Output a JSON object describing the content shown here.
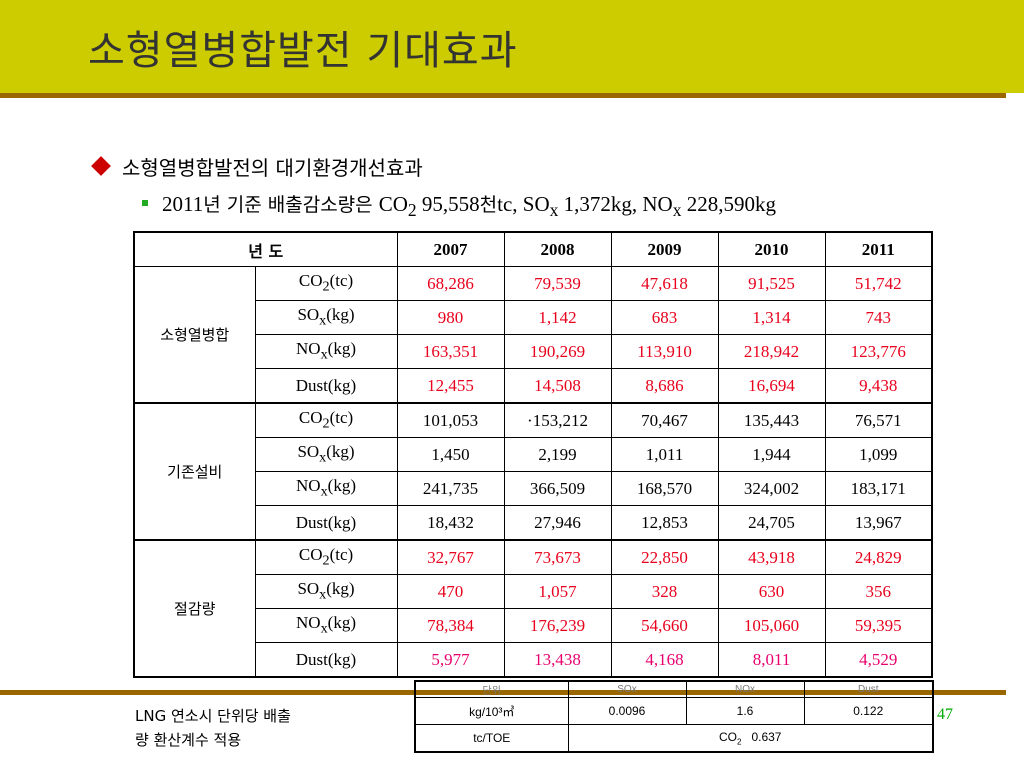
{
  "title": "소형열병합발전 기대효과",
  "bullet1": "소형열병합발전의 대기환경개선효과",
  "bullet2": {
    "prefix": "2011",
    "kr1": "년 기준 배출감소량은 ",
    "co2": "CO",
    "co2_sub": "2",
    "co2_val": " 95,558",
    "kr2": "천",
    "rest1": "tc, SO",
    "sox_sub": "x",
    "rest2": " 1,372kg, NO",
    "nox_sub": "x",
    "rest3": " 228,590kg"
  },
  "table": {
    "header": {
      "year_label": "년 도",
      "years": [
        "2007",
        "2008",
        "2009",
        "2010",
        "2011"
      ]
    },
    "groups": [
      {
        "name": "소형열병합",
        "rows": [
          {
            "label_main": "CO",
            "label_sub": "2",
            "label_unit": "(tc)",
            "values": [
              "68,286",
              "79,539",
              "47,618",
              "91,525",
              "51,742"
            ]
          },
          {
            "label_main": "SO",
            "label_sub": "x",
            "label_unit": "(kg)",
            "values": [
              "980",
              "1,142",
              "683",
              "1,314",
              "743"
            ]
          },
          {
            "label_main": "NO",
            "label_sub": "x",
            "label_unit": "(kg)",
            "values": [
              "163,351",
              "190,269",
              "113,910",
              "218,942",
              "123,776"
            ]
          },
          {
            "label_main": "Dust(kg)",
            "label_sub": "",
            "label_unit": "",
            "values": [
              "12,455",
              "14,508",
              "8,686",
              "16,694",
              "9,438"
            ]
          }
        ]
      },
      {
        "name": "기존설비",
        "rows": [
          {
            "label_main": "CO",
            "label_sub": "2",
            "label_unit": "(tc)",
            "values": [
              "101,053",
              "·153,212",
              "70,467",
              "135,443",
              "76,571"
            ]
          },
          {
            "label_main": "SO",
            "label_sub": "x",
            "label_unit": "(kg)",
            "values": [
              "1,450",
              "2,199",
              "1,011",
              "1,944",
              "1,099"
            ]
          },
          {
            "label_main": "NO",
            "label_sub": "x",
            "label_unit": "(kg)",
            "values": [
              "241,735",
              "366,509",
              "168,570",
              "324,002",
              "183,171"
            ]
          },
          {
            "label_main": "Dust(kg)",
            "label_sub": "",
            "label_unit": "",
            "values": [
              "18,432",
              "27,946",
              "12,853",
              "24,705",
              "13,967"
            ]
          }
        ]
      },
      {
        "name": "절감량",
        "rows": [
          {
            "label_main": "CO",
            "label_sub": "2",
            "label_unit": "(tc)",
            "values": [
              "32,767",
              "73,673",
              "22,850",
              "43,918",
              "24,829"
            ]
          },
          {
            "label_main": "SO",
            "label_sub": "x",
            "label_unit": "(kg)",
            "values": [
              "470",
              "1,057",
              "328",
              "630",
              "356"
            ]
          },
          {
            "label_main": "NO",
            "label_sub": "x",
            "label_unit": "(kg)",
            "values": [
              "78,384",
              "176,239",
              "54,660",
              "105,060",
              "59,395"
            ]
          },
          {
            "label_main": "Dust(kg)",
            "label_sub": "",
            "label_unit": "",
            "values": [
              "5,977",
              "13,438",
              "4,168",
              "8,011",
              "4,529"
            ]
          }
        ]
      }
    ]
  },
  "note": {
    "line1": "LNG 연소시 단위당 배출",
    "line2": "량 환산계수 적용"
  },
  "factor_table": {
    "header": [
      "단위",
      "SOx",
      "NOx",
      "Dust"
    ],
    "row1": [
      "kg/10³㎥",
      "0.0096",
      "1.6",
      "0.122"
    ],
    "row2_label": "tc/TOE",
    "row2_co2": "CO",
    "row2_co2_sub": "2",
    "row2_val": "   0.637"
  },
  "page_number": "47",
  "colors": {
    "title_band": "#cccc00",
    "rule": "#996600",
    "reduced_value": "#e8001c",
    "bullet_diamond": "#cc0000",
    "bullet_square": "#22aa22",
    "page_number": "#00aa00"
  }
}
